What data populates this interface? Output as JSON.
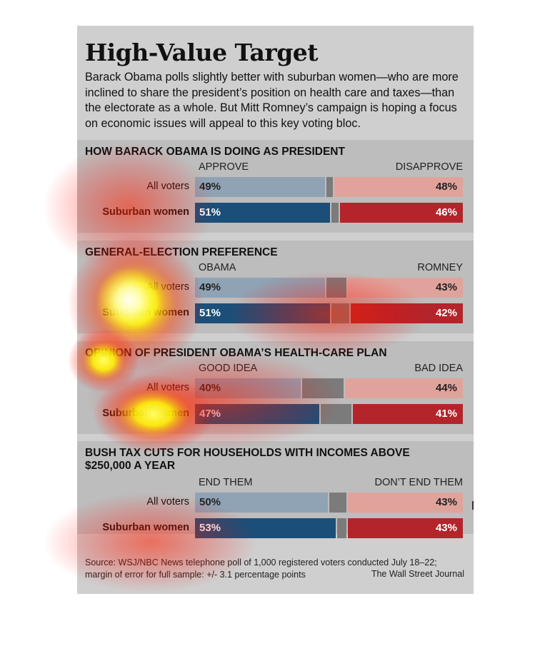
{
  "title": "High-Value Target",
  "intro": "Barack Obama polls slightly better with suburban women—who are more inclined to share the president’s position on health care and taxes—than the electorate as a whole. But Mitt Romney’s campaign is hoping a focus on economic issues will appeal to this key voting bloc.",
  "footer": {
    "source_line1": "Source: WSJ/NBC News telephone poll of 1,000 registered voters conducted July 18–22;",
    "source_line2": "margin of error for full sample: +/- 3.1 percentage points",
    "credit": "The Wall Street Journal"
  },
  "colors": {
    "background": "#cfcfcf",
    "panel": "#bdbdbd",
    "left_light": "#8fa3b5",
    "left_dark": "#1b4f79",
    "middle": "#7b7b7b",
    "right_light": "#e0a39c",
    "right_dark": "#b3252b"
  },
  "chart_data": [
    {
      "type": "bar",
      "title": "HOW BARACK OBAMA IS DOING AS PRESIDENT",
      "left_label": "APPROVE",
      "right_label": "DISAPPROVE",
      "categories": [
        "All voters",
        "Suburban women"
      ],
      "series": [
        {
          "name": "APPROVE",
          "values": [
            49,
            51
          ],
          "labels": [
            "49%",
            "51%"
          ]
        },
        {
          "name": "DISAPPROVE",
          "values": [
            48,
            46
          ],
          "labels": [
            "48%",
            "46%"
          ]
        }
      ]
    },
    {
      "type": "bar",
      "title": "GENERAL-ELECTION PREFERENCE",
      "left_label": "OBAMA",
      "right_label": "ROMNEY",
      "categories": [
        "All voters",
        "Suburban women"
      ],
      "series": [
        {
          "name": "OBAMA",
          "values": [
            49,
            51
          ],
          "labels": [
            "49%",
            "51%"
          ]
        },
        {
          "name": "ROMNEY",
          "values": [
            43,
            42
          ],
          "labels": [
            "43%",
            "42%"
          ]
        }
      ]
    },
    {
      "type": "bar",
      "title": "OPINION OF PRESIDENT OBAMA’S HEALTH-CARE PLAN",
      "left_label": "GOOD IDEA",
      "right_label": "BAD IDEA",
      "categories": [
        "All voters",
        "Suburban women"
      ],
      "series": [
        {
          "name": "GOOD IDEA",
          "values": [
            40,
            47
          ],
          "labels": [
            "40%",
            "47%"
          ]
        },
        {
          "name": "BAD IDEA",
          "values": [
            44,
            41
          ],
          "labels": [
            "44%",
            "41%"
          ]
        }
      ]
    },
    {
      "type": "bar",
      "title": "BUSH TAX CUTS FOR HOUSEHOLDS WITH INCOMES ABOVE $250,000 A YEAR",
      "left_label": "END THEM",
      "right_label": "DON’T END THEM",
      "categories": [
        "All voters",
        "Suburban women"
      ],
      "series": [
        {
          "name": "END THEM",
          "values": [
            50,
            53
          ],
          "labels": [
            "50%",
            "53%"
          ]
        },
        {
          "name": "DON’T END THEM",
          "values": [
            43,
            43
          ],
          "labels": [
            "43%",
            "43%"
          ]
        }
      ]
    }
  ]
}
